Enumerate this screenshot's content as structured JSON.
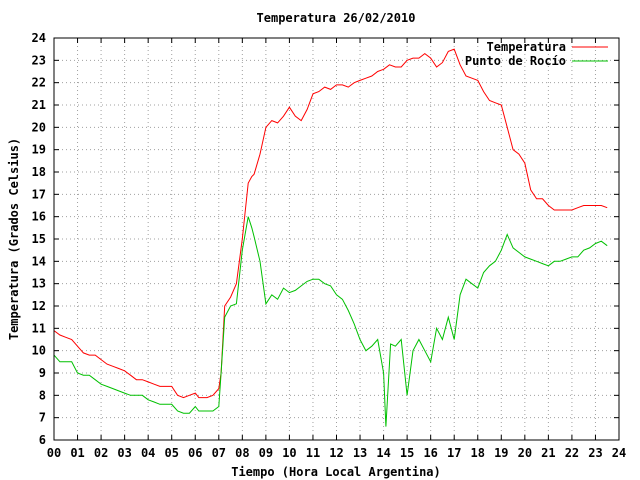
{
  "chart_data": {
    "type": "line",
    "title": "Temperatura 26/02/2010",
    "xlabel": "Tiempo (Hora Local Argentina)",
    "ylabel": "Temperatura (Grados Celsius)",
    "xlim": [
      0,
      24
    ],
    "ylim": [
      6,
      24
    ],
    "x_ticks": [
      "00",
      "01",
      "02",
      "03",
      "04",
      "05",
      "06",
      "07",
      "08",
      "09",
      "10",
      "11",
      "12",
      "13",
      "14",
      "15",
      "16",
      "17",
      "18",
      "19",
      "20",
      "21",
      "22",
      "23",
      "24"
    ],
    "y_ticks": [
      "6",
      "7",
      "8",
      "9",
      "10",
      "11",
      "12",
      "13",
      "14",
      "15",
      "16",
      "17",
      "18",
      "19",
      "20",
      "21",
      "22",
      "23",
      "24"
    ],
    "grid": true,
    "legend_position": "top-right",
    "series": [
      {
        "name": "Temperatura",
        "color": "#ff0000",
        "x": [
          0,
          0.25,
          0.5,
          0.75,
          1,
          1.25,
          1.5,
          1.75,
          2,
          2.25,
          2.5,
          2.75,
          3,
          3.25,
          3.5,
          3.75,
          4,
          4.25,
          4.5,
          4.75,
          5,
          5.25,
          5.5,
          5.75,
          6,
          6.15,
          6.25,
          6.4,
          6.5,
          6.75,
          7,
          7.1,
          7.25,
          7.5,
          7.75,
          8,
          8.25,
          8.4,
          8.5,
          8.75,
          9,
          9.25,
          9.5,
          9.75,
          10,
          10.25,
          10.5,
          10.75,
          11,
          11.25,
          11.5,
          11.75,
          12,
          12.25,
          12.5,
          12.75,
          13,
          13.25,
          13.5,
          13.75,
          14,
          14.25,
          14.5,
          14.75,
          15,
          15.25,
          15.5,
          15.75,
          16,
          16.25,
          16.5,
          16.75,
          17,
          17.25,
          17.5,
          17.75,
          18,
          18.25,
          18.5,
          18.75,
          19,
          19.25,
          19.5,
          19.75,
          20,
          20.25,
          20.5,
          20.75,
          21,
          21.25,
          21.5,
          21.75,
          22,
          22.25,
          22.5,
          22.75,
          23,
          23.25,
          23.5
        ],
        "y": [
          10.9,
          10.7,
          10.6,
          10.5,
          10.2,
          9.9,
          9.8,
          9.8,
          9.6,
          9.4,
          9.3,
          9.2,
          9.1,
          8.9,
          8.7,
          8.7,
          8.6,
          8.5,
          8.4,
          8.4,
          8.4,
          8.0,
          7.9,
          8.0,
          8.1,
          7.9,
          7.9,
          7.9,
          7.9,
          8.0,
          8.3,
          9.0,
          12.0,
          12.4,
          13.0,
          15.0,
          17.5,
          17.8,
          17.9,
          18.8,
          20.0,
          20.3,
          20.2,
          20.5,
          20.9,
          20.5,
          20.3,
          20.8,
          21.5,
          21.6,
          21.8,
          21.7,
          21.9,
          21.9,
          21.8,
          22.0,
          22.1,
          22.2,
          22.3,
          22.5,
          22.6,
          22.8,
          22.7,
          22.7,
          23.0,
          23.1,
          23.1,
          23.3,
          23.1,
          22.7,
          22.9,
          23.4,
          23.5,
          22.8,
          22.3,
          22.2,
          22.1,
          21.6,
          21.2,
          21.1,
          21.0,
          20.0,
          19.0,
          18.8,
          18.4,
          17.2,
          16.8,
          16.8,
          16.5,
          16.3,
          16.3,
          16.3,
          16.3,
          16.4,
          16.5,
          16.5,
          16.5,
          16.5,
          16.4
        ]
      },
      {
        "name": "Punto de Rocío",
        "color": "#00c000",
        "x": [
          0,
          0.25,
          0.5,
          0.75,
          1,
          1.25,
          1.5,
          1.75,
          2,
          2.25,
          2.5,
          2.75,
          3,
          3.25,
          3.5,
          3.75,
          4,
          4.25,
          4.5,
          4.75,
          5,
          5.25,
          5.5,
          5.75,
          6,
          6.15,
          6.25,
          6.4,
          6.5,
          6.75,
          7,
          7.1,
          7.25,
          7.5,
          7.75,
          8,
          8.25,
          8.4,
          8.5,
          8.75,
          9,
          9.25,
          9.5,
          9.75,
          10,
          10.25,
          10.5,
          10.75,
          11,
          11.25,
          11.5,
          11.75,
          12,
          12.25,
          12.5,
          12.75,
          13,
          13.25,
          13.5,
          13.75,
          14,
          14.1,
          14.2,
          14.3,
          14.5,
          14.75,
          15,
          15.25,
          15.5,
          15.75,
          16,
          16.25,
          16.5,
          16.75,
          17,
          17.25,
          17.5,
          17.75,
          18,
          18.25,
          18.5,
          18.75,
          19,
          19.25,
          19.5,
          19.75,
          20,
          20.25,
          20.5,
          20.75,
          21,
          21.25,
          21.5,
          21.75,
          22,
          22.25,
          22.5,
          22.75,
          23,
          23.25,
          23.5
        ],
        "y": [
          9.8,
          9.5,
          9.5,
          9.5,
          9.0,
          8.9,
          8.9,
          8.7,
          8.5,
          8.4,
          8.3,
          8.2,
          8.1,
          8.0,
          8.0,
          8.0,
          7.8,
          7.7,
          7.6,
          7.6,
          7.6,
          7.3,
          7.2,
          7.2,
          7.5,
          7.3,
          7.3,
          7.3,
          7.3,
          7.3,
          7.5,
          9.0,
          11.5,
          12.0,
          12.1,
          14.5,
          16.0,
          15.5,
          15.1,
          14.0,
          12.1,
          12.5,
          12.3,
          12.8,
          12.6,
          12.7,
          12.9,
          13.1,
          13.2,
          13.2,
          13.0,
          12.9,
          12.5,
          12.3,
          11.8,
          11.2,
          10.5,
          10.0,
          10.2,
          10.5,
          9.0,
          6.6,
          8.5,
          10.3,
          10.2,
          10.5,
          8.0,
          10.0,
          10.5,
          10.0,
          9.5,
          11.0,
          10.5,
          11.5,
          10.5,
          12.5,
          13.2,
          13.0,
          12.8,
          13.5,
          13.8,
          14.0,
          14.5,
          15.2,
          14.6,
          14.4,
          14.2,
          14.1,
          14.0,
          13.9,
          13.8,
          14.0,
          14.0,
          14.1,
          14.2,
          14.2,
          14.5,
          14.6,
          14.8,
          14.9,
          14.7
        ]
      }
    ]
  }
}
